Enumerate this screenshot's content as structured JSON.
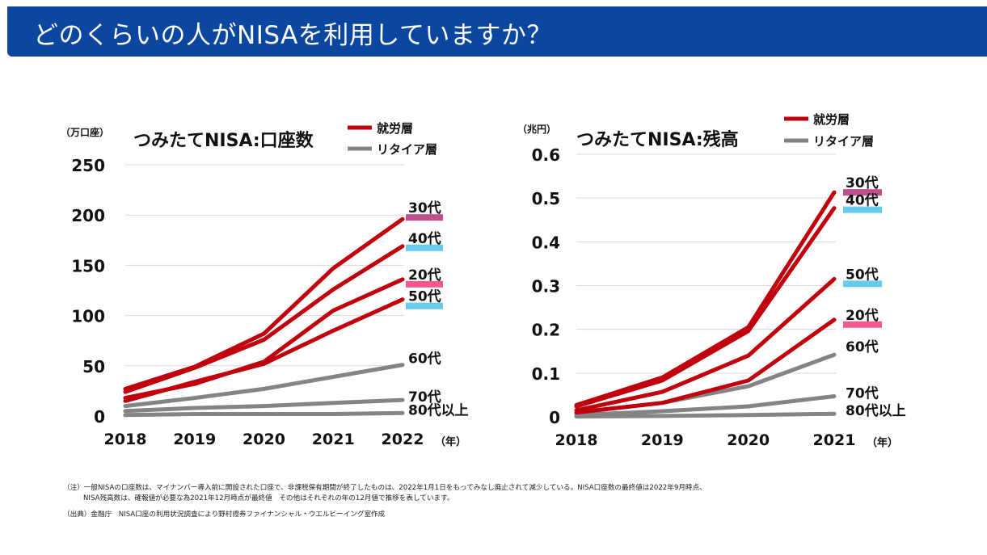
{
  "page": {
    "title": "どのくらいの人がNISAを利用していますか？"
  },
  "colors": {
    "header_bg": "#0b46a0",
    "working": "#c0000c",
    "retired": "#848484",
    "band_30s": "#c0508c",
    "band_40s": "#66ccee",
    "band_20s": "#f45890",
    "band_50s": "#66ccee"
  },
  "legend": {
    "working": "就労層",
    "retired": "リタイア層"
  },
  "chart_data": [
    {
      "type": "line",
      "title": "つみたてNISA:口座数",
      "unit_label": "（万口座）",
      "x_unit_label": "（年）",
      "x": [
        "2018",
        "2019",
        "2020",
        "2021",
        "2022"
      ],
      "ylim": [
        0,
        250
      ],
      "yticks": [
        "0",
        "50",
        "100",
        "150",
        "200",
        "250"
      ],
      "grid": true,
      "series": [
        {
          "name": "30代",
          "group": "working",
          "values": [
            27,
            49,
            82,
            147,
            196
          ],
          "band": "band_30s"
        },
        {
          "name": "40代",
          "group": "working",
          "values": [
            24,
            48,
            76,
            126,
            169
          ],
          "band": "band_40s"
        },
        {
          "name": "20代",
          "group": "working",
          "values": [
            18,
            32,
            54,
            105,
            136
          ],
          "band": "band_20s"
        },
        {
          "name": "50代",
          "group": "working",
          "values": [
            15,
            34,
            52,
            85,
            116
          ],
          "band": "band_50s"
        },
        {
          "name": "60代",
          "group": "retired",
          "values": [
            10,
            18,
            27,
            39,
            51
          ],
          "band": null
        },
        {
          "name": "70代",
          "group": "retired",
          "values": [
            5,
            8,
            10,
            13,
            16
          ],
          "band": null
        },
        {
          "name": "80代以上",
          "group": "retired",
          "values": [
            1,
            2,
            2,
            2,
            3
          ],
          "band": null
        }
      ]
    },
    {
      "type": "line",
      "title": "つみたてNISA:残高",
      "unit_label": "（兆円）",
      "x_unit_label": "（年）",
      "x": [
        "2018",
        "2019",
        "2020",
        "2021"
      ],
      "ylim": [
        0,
        0.6
      ],
      "yticks": [
        "0",
        "0.1",
        "0.2",
        "0.3",
        "0.4",
        "0.5",
        "0.6"
      ],
      "grid": true,
      "series": [
        {
          "name": "30代",
          "group": "working",
          "values": [
            0.027,
            0.09,
            0.205,
            0.513
          ],
          "band": "band_30s"
        },
        {
          "name": "40代",
          "group": "working",
          "values": [
            0.024,
            0.083,
            0.196,
            0.477
          ],
          "band": "band_40s"
        },
        {
          "name": "50代",
          "group": "working",
          "values": [
            0.015,
            0.057,
            0.14,
            0.315
          ],
          "band": "band_50s"
        },
        {
          "name": "20代",
          "group": "working",
          "values": [
            0.01,
            0.032,
            0.083,
            0.222
          ],
          "band": "band_20s"
        },
        {
          "name": "60代",
          "group": "retired",
          "values": [
            0.01,
            0.032,
            0.07,
            0.142
          ],
          "band": null
        },
        {
          "name": "70代",
          "group": "retired",
          "values": [
            0.004,
            0.013,
            0.024,
            0.047
          ],
          "band": null
        },
        {
          "name": "80代以上",
          "group": "retired",
          "values": [
            0.001,
            0.002,
            0.004,
            0.007
          ],
          "band": null
        }
      ]
    }
  ],
  "notes": {
    "note1": "（注）一般NISAの口座数は、マイナンバー導入前に開設された口座で、非課税保有期間が終了したものは、2022年1月1日をもってみなし廃止されて減少している。NISA口座数の最終値は2022年9月時点、",
    "note2": "NISA残高数は、確報値が必要な為2021年12月時点が最終値　その他はそれぞれの年の12月値で推移を表しています。",
    "source": "（出典）金融庁　NISA口座の利用状況調査により野村證券ファイナンシャル・ウエルビーイング室作成"
  }
}
